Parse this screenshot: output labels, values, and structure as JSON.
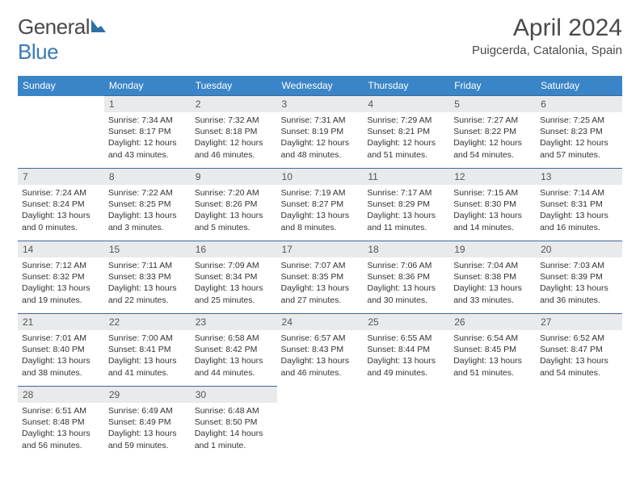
{
  "logo": {
    "part1": "General",
    "part2": "Blue"
  },
  "title": "April 2024",
  "location": "Puigcerda, Catalonia, Spain",
  "colors": {
    "header_bg": "#3a85c7",
    "header_text": "#ffffff",
    "daynum_bg": "#e9eaeb",
    "rule": "#3a6a9a",
    "logo_gray": "#4a4a4a",
    "logo_blue": "#3a7ab8"
  },
  "weekdays": [
    "Sunday",
    "Monday",
    "Tuesday",
    "Wednesday",
    "Thursday",
    "Friday",
    "Saturday"
  ],
  "weeks": [
    [
      {
        "n": "",
        "sr": "",
        "ss": "",
        "dl": ""
      },
      {
        "n": "1",
        "sr": "Sunrise: 7:34 AM",
        "ss": "Sunset: 8:17 PM",
        "dl": "Daylight: 12 hours and 43 minutes."
      },
      {
        "n": "2",
        "sr": "Sunrise: 7:32 AM",
        "ss": "Sunset: 8:18 PM",
        "dl": "Daylight: 12 hours and 46 minutes."
      },
      {
        "n": "3",
        "sr": "Sunrise: 7:31 AM",
        "ss": "Sunset: 8:19 PM",
        "dl": "Daylight: 12 hours and 48 minutes."
      },
      {
        "n": "4",
        "sr": "Sunrise: 7:29 AM",
        "ss": "Sunset: 8:21 PM",
        "dl": "Daylight: 12 hours and 51 minutes."
      },
      {
        "n": "5",
        "sr": "Sunrise: 7:27 AM",
        "ss": "Sunset: 8:22 PM",
        "dl": "Daylight: 12 hours and 54 minutes."
      },
      {
        "n": "6",
        "sr": "Sunrise: 7:25 AM",
        "ss": "Sunset: 8:23 PM",
        "dl": "Daylight: 12 hours and 57 minutes."
      }
    ],
    [
      {
        "n": "7",
        "sr": "Sunrise: 7:24 AM",
        "ss": "Sunset: 8:24 PM",
        "dl": "Daylight: 13 hours and 0 minutes."
      },
      {
        "n": "8",
        "sr": "Sunrise: 7:22 AM",
        "ss": "Sunset: 8:25 PM",
        "dl": "Daylight: 13 hours and 3 minutes."
      },
      {
        "n": "9",
        "sr": "Sunrise: 7:20 AM",
        "ss": "Sunset: 8:26 PM",
        "dl": "Daylight: 13 hours and 5 minutes."
      },
      {
        "n": "10",
        "sr": "Sunrise: 7:19 AM",
        "ss": "Sunset: 8:27 PM",
        "dl": "Daylight: 13 hours and 8 minutes."
      },
      {
        "n": "11",
        "sr": "Sunrise: 7:17 AM",
        "ss": "Sunset: 8:29 PM",
        "dl": "Daylight: 13 hours and 11 minutes."
      },
      {
        "n": "12",
        "sr": "Sunrise: 7:15 AM",
        "ss": "Sunset: 8:30 PM",
        "dl": "Daylight: 13 hours and 14 minutes."
      },
      {
        "n": "13",
        "sr": "Sunrise: 7:14 AM",
        "ss": "Sunset: 8:31 PM",
        "dl": "Daylight: 13 hours and 16 minutes."
      }
    ],
    [
      {
        "n": "14",
        "sr": "Sunrise: 7:12 AM",
        "ss": "Sunset: 8:32 PM",
        "dl": "Daylight: 13 hours and 19 minutes."
      },
      {
        "n": "15",
        "sr": "Sunrise: 7:11 AM",
        "ss": "Sunset: 8:33 PM",
        "dl": "Daylight: 13 hours and 22 minutes."
      },
      {
        "n": "16",
        "sr": "Sunrise: 7:09 AM",
        "ss": "Sunset: 8:34 PM",
        "dl": "Daylight: 13 hours and 25 minutes."
      },
      {
        "n": "17",
        "sr": "Sunrise: 7:07 AM",
        "ss": "Sunset: 8:35 PM",
        "dl": "Daylight: 13 hours and 27 minutes."
      },
      {
        "n": "18",
        "sr": "Sunrise: 7:06 AM",
        "ss": "Sunset: 8:36 PM",
        "dl": "Daylight: 13 hours and 30 minutes."
      },
      {
        "n": "19",
        "sr": "Sunrise: 7:04 AM",
        "ss": "Sunset: 8:38 PM",
        "dl": "Daylight: 13 hours and 33 minutes."
      },
      {
        "n": "20",
        "sr": "Sunrise: 7:03 AM",
        "ss": "Sunset: 8:39 PM",
        "dl": "Daylight: 13 hours and 36 minutes."
      }
    ],
    [
      {
        "n": "21",
        "sr": "Sunrise: 7:01 AM",
        "ss": "Sunset: 8:40 PM",
        "dl": "Daylight: 13 hours and 38 minutes."
      },
      {
        "n": "22",
        "sr": "Sunrise: 7:00 AM",
        "ss": "Sunset: 8:41 PM",
        "dl": "Daylight: 13 hours and 41 minutes."
      },
      {
        "n": "23",
        "sr": "Sunrise: 6:58 AM",
        "ss": "Sunset: 8:42 PM",
        "dl": "Daylight: 13 hours and 44 minutes."
      },
      {
        "n": "24",
        "sr": "Sunrise: 6:57 AM",
        "ss": "Sunset: 8:43 PM",
        "dl": "Daylight: 13 hours and 46 minutes."
      },
      {
        "n": "25",
        "sr": "Sunrise: 6:55 AM",
        "ss": "Sunset: 8:44 PM",
        "dl": "Daylight: 13 hours and 49 minutes."
      },
      {
        "n": "26",
        "sr": "Sunrise: 6:54 AM",
        "ss": "Sunset: 8:45 PM",
        "dl": "Daylight: 13 hours and 51 minutes."
      },
      {
        "n": "27",
        "sr": "Sunrise: 6:52 AM",
        "ss": "Sunset: 8:47 PM",
        "dl": "Daylight: 13 hours and 54 minutes."
      }
    ],
    [
      {
        "n": "28",
        "sr": "Sunrise: 6:51 AM",
        "ss": "Sunset: 8:48 PM",
        "dl": "Daylight: 13 hours and 56 minutes."
      },
      {
        "n": "29",
        "sr": "Sunrise: 6:49 AM",
        "ss": "Sunset: 8:49 PM",
        "dl": "Daylight: 13 hours and 59 minutes."
      },
      {
        "n": "30",
        "sr": "Sunrise: 6:48 AM",
        "ss": "Sunset: 8:50 PM",
        "dl": "Daylight: 14 hours and 1 minute."
      },
      {
        "n": "",
        "sr": "",
        "ss": "",
        "dl": ""
      },
      {
        "n": "",
        "sr": "",
        "ss": "",
        "dl": ""
      },
      {
        "n": "",
        "sr": "",
        "ss": "",
        "dl": ""
      },
      {
        "n": "",
        "sr": "",
        "ss": "",
        "dl": ""
      }
    ]
  ]
}
